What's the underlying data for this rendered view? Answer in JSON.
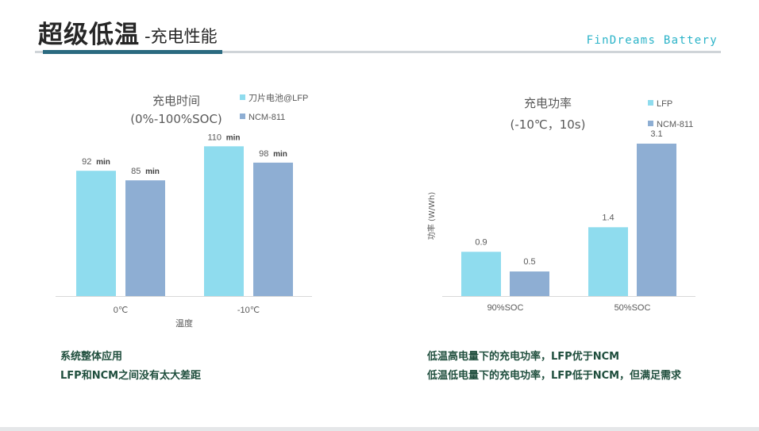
{
  "header": {
    "title_main": "超级低温",
    "title_sub": "-充电性能",
    "brand": "FinDreams Battery"
  },
  "colors": {
    "series_light": "#8fdcee",
    "series_dark": "#8eaed3",
    "axis": "#d9d9d9",
    "text": "#595959",
    "note_text": "#1f4e3d",
    "accent_rule": "#2a6a80"
  },
  "chart_data": [
    {
      "type": "bar",
      "title": "充电时间",
      "subtitle": "(0%-100%SOC)",
      "categories": [
        "0℃",
        "-10℃"
      ],
      "xlabel": "温度",
      "ylabel": "",
      "ylim": [
        0,
        130
      ],
      "legend_position": "top-right",
      "series": [
        {
          "name": "刀片电池@LFP",
          "values": [
            92,
            110
          ],
          "data_labels": [
            "92",
            "110"
          ],
          "unit_labels": [
            "min",
            "min"
          ]
        },
        {
          "name": "NCM-811",
          "values": [
            85,
            98
          ],
          "data_labels": [
            "85",
            "98"
          ],
          "unit_labels": [
            "min",
            "min"
          ]
        }
      ]
    },
    {
      "type": "bar",
      "title": "充电功率",
      "subtitle": "(-10℃，10s)",
      "categories": [
        "90%SOC",
        "50%SOC"
      ],
      "xlabel": "",
      "ylabel": "功率 (W/Wh)",
      "ylim": [
        0,
        3.6
      ],
      "legend_position": "top-right",
      "series": [
        {
          "name": "LFP",
          "values": [
            0.9,
            1.4
          ],
          "data_labels": [
            "0.9",
            "1.4"
          ]
        },
        {
          "name": "NCM-811",
          "values": [
            0.5,
            3.1
          ],
          "data_labels": [
            "0.5",
            "3.1"
          ]
        }
      ]
    }
  ],
  "notes_left": [
    "系统整体应用",
    "LFP和NCM之间没有太大差距"
  ],
  "notes_right": [
    "低温高电量下的充电功率，LFP优于NCM",
    "低温低电量下的充电功率，LFP低于NCM，但满足需求"
  ]
}
